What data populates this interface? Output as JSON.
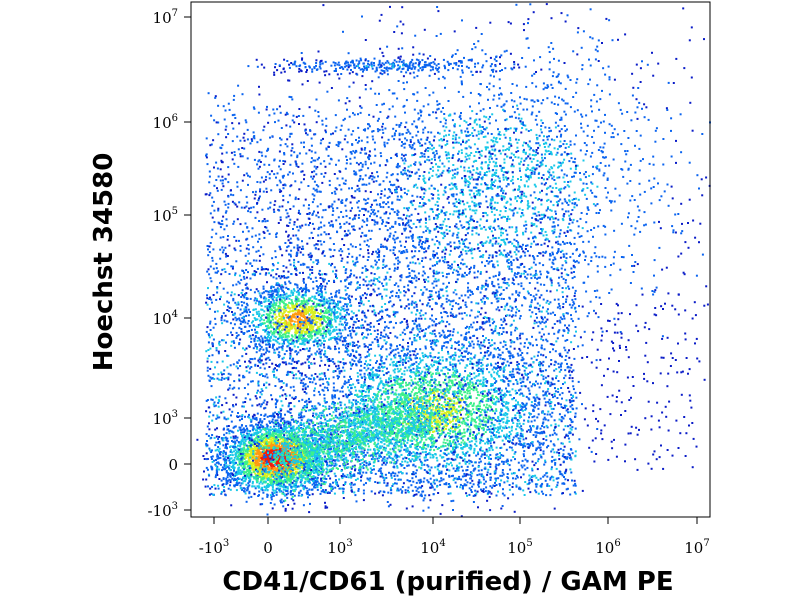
{
  "chart_data": {
    "type": "scatter",
    "title": "",
    "xlabel": "CD41/CD61 (purified) / GAM PE",
    "ylabel": "Hoechst 34580",
    "x_scale": "biexponential",
    "y_scale": "biexponential",
    "xlim": [
      -2000,
      10000000
    ],
    "ylim": [
      -2000,
      15000000
    ],
    "x_ticks": [
      {
        "value": -1000,
        "base": "-10",
        "exp": "3"
      },
      {
        "value": 0,
        "base": "0",
        "exp": ""
      },
      {
        "value": 1000,
        "base": "10",
        "exp": "3"
      },
      {
        "value": 10000,
        "base": "10",
        "exp": "4"
      },
      {
        "value": 100000,
        "base": "10",
        "exp": "5"
      },
      {
        "value": 1000000,
        "base": "10",
        "exp": "6"
      },
      {
        "value": 10000000,
        "base": "10",
        "exp": "7"
      }
    ],
    "y_ticks": [
      {
        "value": -1000,
        "base": "-10",
        "exp": "3"
      },
      {
        "value": 0,
        "base": "0",
        "exp": ""
      },
      {
        "value": 1000,
        "base": "10",
        "exp": "3"
      },
      {
        "value": 10000,
        "base": "10",
        "exp": "4"
      },
      {
        "value": 100000,
        "base": "10",
        "exp": "5"
      },
      {
        "value": 1000000,
        "base": "10",
        "exp": "6"
      },
      {
        "value": 10000000,
        "base": "10",
        "exp": "7"
      }
    ],
    "colormap": [
      "#0a1cc8",
      "#0a64f0",
      "#18c8e8",
      "#3cf08c",
      "#d8f020",
      "#ff9a10",
      "#f01e0a"
    ],
    "populations": [
      {
        "x_center": 100,
        "y_center": 150,
        "density": "highest"
      },
      {
        "x_center": 400,
        "y_center": 10000,
        "density": "high"
      },
      {
        "x_center": 10000,
        "y_center": 1200,
        "density": "medium"
      },
      {
        "x_center": 3000,
        "y_center": 3500000,
        "density": "low"
      },
      {
        "x_center": 50000,
        "y_center": 200000,
        "density": "low"
      }
    ],
    "grid": false,
    "legend": "none"
  }
}
